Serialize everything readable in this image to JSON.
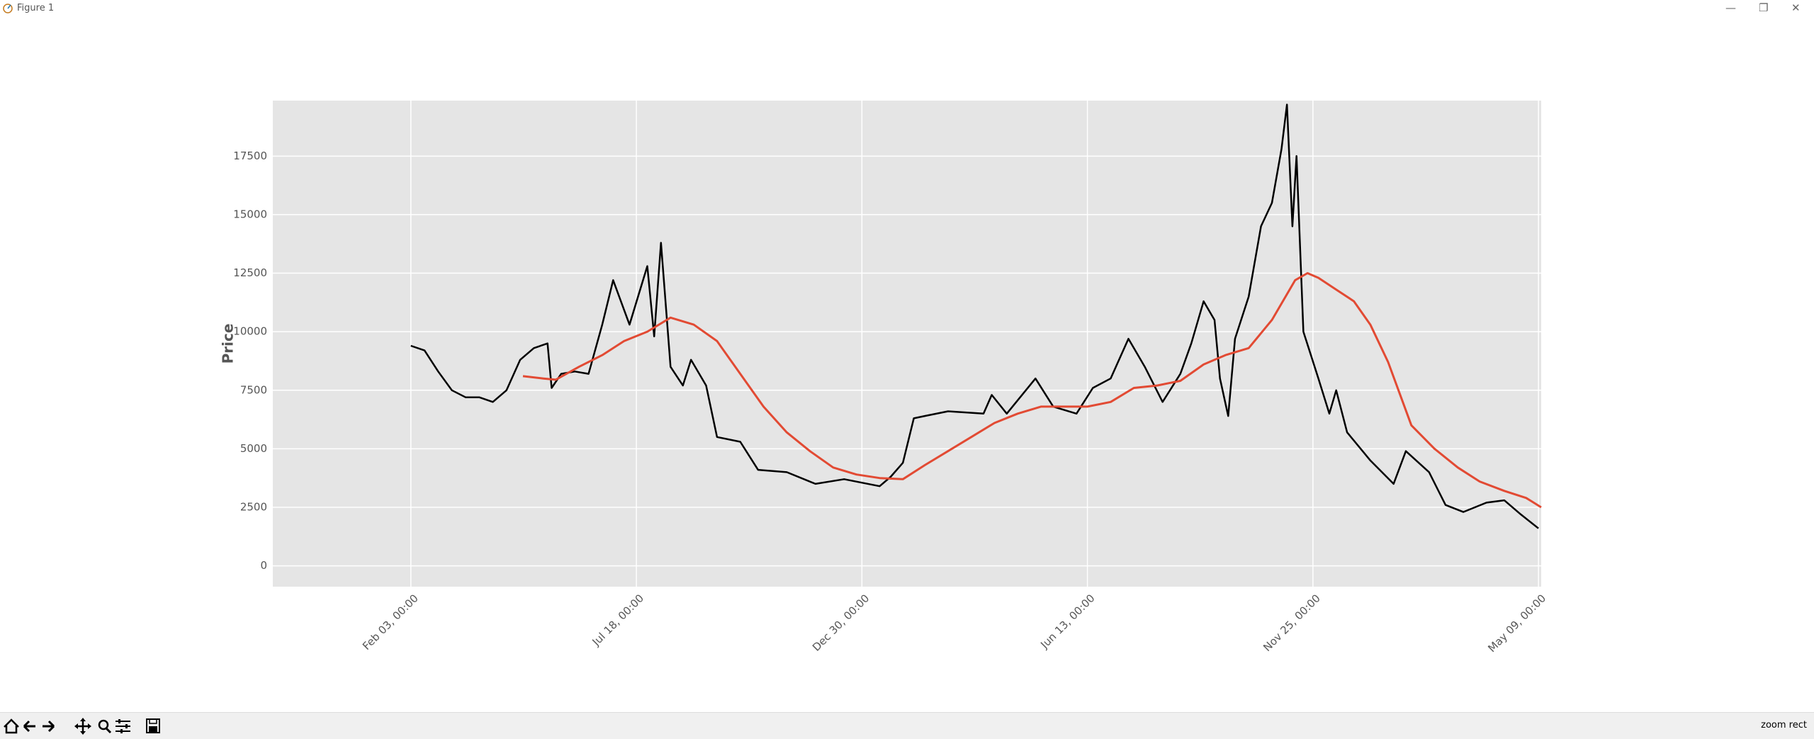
{
  "window": {
    "title": "Figure 1",
    "status": "zoom rect"
  },
  "chart_data": {
    "type": "line",
    "ylabel": "Price",
    "xlim": [
      -101,
      827
    ],
    "ylim": [
      -890,
      19870
    ],
    "xticks": [
      {
        "value": 0,
        "label": "Feb 03, 00:00"
      },
      {
        "value": 165,
        "label": "Jul 18, 00:00"
      },
      {
        "value": 330,
        "label": "Dec 30, 00:00"
      },
      {
        "value": 495,
        "label": "Jun 13, 00:00"
      },
      {
        "value": 660,
        "label": "Nov 25, 00:00"
      },
      {
        "value": 825,
        "label": "May 09, 00:00"
      }
    ],
    "yticks": [
      0,
      2500,
      5000,
      7500,
      10000,
      12500,
      15000,
      17500
    ],
    "grid": true,
    "series": [
      {
        "color": "#000000",
        "x": [
          0,
          10,
          20,
          30,
          40,
          50,
          60,
          70,
          80,
          90,
          100,
          103,
          110,
          120,
          130,
          140,
          148,
          160,
          173,
          178,
          183,
          190,
          199,
          205,
          216,
          224,
          241,
          254,
          275,
          296,
          317,
          343,
          351,
          360,
          368,
          376,
          393,
          419,
          425,
          436,
          457,
          470,
          487,
          499,
          512,
          525,
          537,
          550,
          563,
          571,
          580,
          588,
          592,
          598,
          603,
          613,
          622,
          630,
          637,
          641,
          645,
          648,
          653,
          664,
          672,
          677,
          685,
          702,
          719,
          728,
          745,
          757,
          770,
          787,
          800,
          812,
          825
        ],
        "values": [
          9400,
          9200,
          8300,
          7500,
          7200,
          7200,
          7000,
          7500,
          8800,
          9300,
          9500,
          7600,
          8200,
          8300,
          8200,
          10300,
          12200,
          10300,
          12800,
          9800,
          13800,
          8500,
          7700,
          8800,
          7700,
          5500,
          5300,
          4100,
          4000,
          3500,
          3700,
          3400,
          3800,
          4400,
          6300,
          6400,
          6600,
          6500,
          7300,
          6500,
          8000,
          6800,
          6500,
          7600,
          8000,
          9700,
          8500,
          7000,
          8200,
          9500,
          11300,
          10500,
          8000,
          6400,
          9700,
          11500,
          14500,
          15500,
          17800,
          19700,
          14500,
          17500,
          10000,
          8000,
          6500,
          7500,
          5700,
          4500,
          3500,
          4900,
          4000,
          2600,
          2300,
          2700,
          2800,
          2200,
          1600
        ]
      },
      {
        "color": "#e24a33",
        "x": [
          82,
          97,
          106,
          123,
          140,
          156,
          173,
          190,
          207,
          224,
          241,
          258,
          275,
          292,
          309,
          326,
          343,
          360,
          376,
          393,
          410,
          427,
          444,
          461,
          478,
          495,
          512,
          529,
          546,
          563,
          580,
          596,
          613,
          630,
          647,
          656,
          664,
          677,
          690,
          702,
          715,
          732,
          749,
          766,
          782,
          800,
          816,
          827
        ],
        "values": [
          8100,
          8000,
          7950,
          8500,
          9000,
          9600,
          10000,
          10600,
          10300,
          9600,
          8200,
          6800,
          5700,
          4900,
          4200,
          3900,
          3750,
          3700,
          4300,
          4900,
          5500,
          6100,
          6500,
          6800,
          6800,
          6800,
          7000,
          7600,
          7700,
          7900,
          8600,
          9000,
          9300,
          10500,
          12200,
          12500,
          12300,
          11800,
          11300,
          10300,
          8700,
          6000,
          5000,
          4200,
          3600,
          3200,
          2900,
          2500
        ]
      }
    ]
  }
}
